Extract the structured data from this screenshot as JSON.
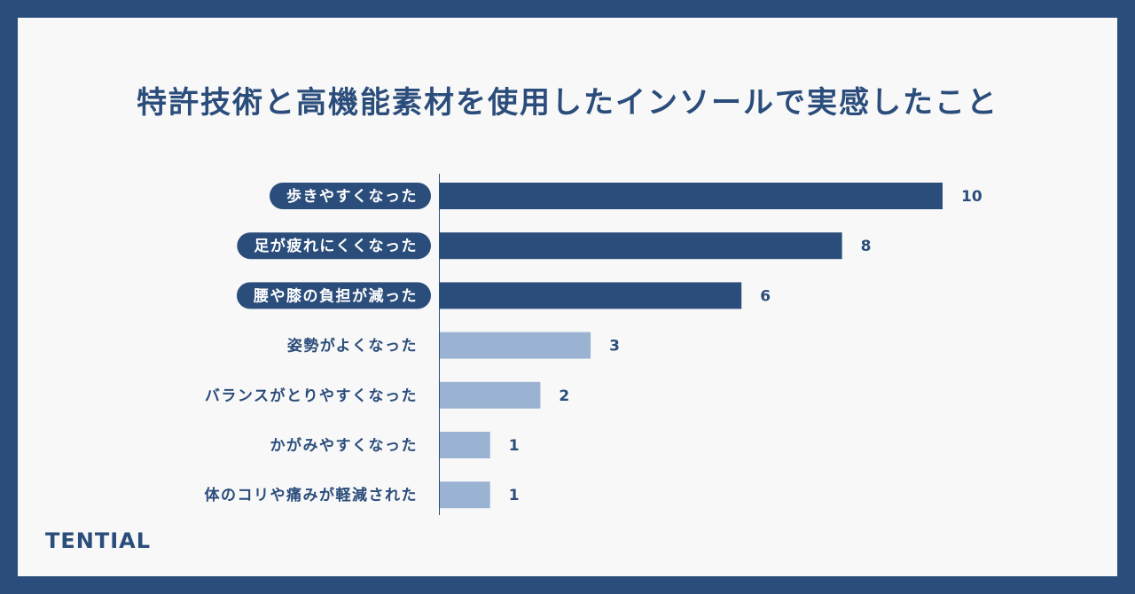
{
  "brand": "TENTIAL",
  "colors": {
    "frame": "#2b4d7b",
    "background": "#f8f8f8",
    "bar_dark": "#2b4d7b",
    "bar_light": "#9bb3d2",
    "text": "#2b4d7b",
    "highlight_text": "#ffffff"
  },
  "chart_data": {
    "type": "bar",
    "orientation": "horizontal",
    "title": "特許技術と高機能素材を使用したインソールで実感したこと",
    "categories": [
      "歩きやすくなった",
      "足が疲れにくくなった",
      "腰や膝の負担が減った",
      "姿勢がよくなった",
      "バランスがとりやすくなった",
      "かがみやすくなった",
      "体のコリや痛みが軽減された"
    ],
    "values": [
      10,
      8,
      6,
      3,
      2,
      1,
      1
    ],
    "highlighted": [
      true,
      true,
      true,
      false,
      false,
      false,
      false
    ],
    "xlim": [
      0,
      10
    ],
    "grid": false,
    "legend": "none"
  }
}
